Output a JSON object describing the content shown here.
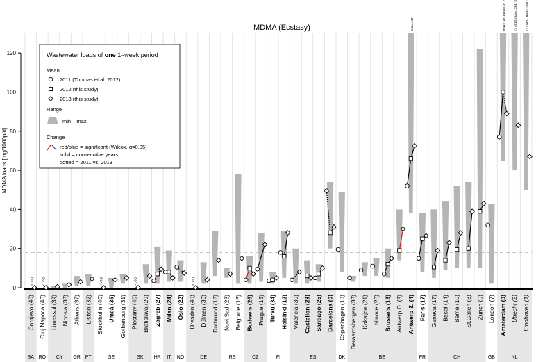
{
  "chart_data": {
    "type": "line",
    "title": "MDMA (Ecstasy)",
    "ylabel": "MDMA loads [mg/1000p/d]",
    "ylim": [
      0,
      130
    ],
    "yticks": [
      0,
      20,
      40,
      60,
      80,
      100,
      120
    ],
    "reference_line": 18,
    "grid": true,
    "legend": {
      "title_prefix": "Wastewater loads of ",
      "title_bold": "one",
      "title_suffix": " 1–week period",
      "mean_heading": "Mean",
      "mean_items": [
        "2011 (Thomas et al. 2012)",
        "2012 (this study)",
        "2013 (this study)"
      ],
      "range_heading": "Range",
      "range_item": "min – max",
      "change_heading": "Change",
      "change_items": [
        "red/blue = significant (Wilcox, α=0.05)",
        "solid = consecutive years",
        "dotted = 2011 vs. 2013"
      ]
    },
    "loq_label": "<LOQ",
    "cities": [
      {
        "label": "Sarajevo (40)",
        "country": "BA",
        "v": [
          null,
          null,
          0
        ],
        "r": [
          0,
          0
        ],
        "loq": true
      },
      {
        "label": "Cluj Napoca (40)",
        "country": "RO",
        "v": [
          null,
          null,
          0
        ],
        "r": [
          0,
          0
        ],
        "loq": true
      },
      {
        "label": "Limassol (39)",
        "country": "CY",
        "v": [
          null,
          null,
          0.5
        ],
        "r": [
          0,
          1
        ]
      },
      {
        "label": "Nicosia (38)",
        "country": "CY",
        "v": [
          null,
          null,
          1.5
        ],
        "r": [
          0,
          2
        ]
      },
      {
        "label": "Athens (37)",
        "country": "GR",
        "v": [
          null,
          null,
          3
        ],
        "r": [
          1,
          6
        ]
      },
      {
        "label": "Lisbon (32)",
        "country": "PT",
        "v": [
          null,
          null,
          4.5
        ],
        "r": [
          1,
          7
        ]
      },
      {
        "label": "Stockholm (40)",
        "country": "SE",
        "v": [
          null,
          null,
          0
        ],
        "r": [
          0,
          0
        ],
        "loq": true
      },
      {
        "label": "Umeå (35)",
        "country": "SE",
        "bold": true,
        "v": [
          null,
          null,
          4
        ],
        "r": [
          0,
          5
        ]
      },
      {
        "label": "Gothenburg (31)",
        "country": "SE",
        "v": [
          null,
          null,
          5
        ],
        "r": [
          2,
          7
        ]
      },
      {
        "label": "Piestany (40)",
        "country": "SK",
        "v": [
          null,
          null,
          0
        ],
        "r": [
          0,
          0
        ],
        "loq": true
      },
      {
        "label": "Bratislava (29)",
        "country": "SK",
        "v": [
          null,
          null,
          6
        ],
        "r": [
          2,
          12
        ]
      },
      {
        "label": "Zagreb (27)",
        "country": "HR",
        "bold": true,
        "v": [
          3.5,
          7,
          9.5
        ],
        "r": [
          2,
          21
        ],
        "seg": [
          "red",
          "solid"
        ]
      },
      {
        "label": "Milan (24)",
        "country": "IT",
        "bold": true,
        "v": [
          8,
          8,
          5
        ],
        "r": [
          3,
          19
        ],
        "seg": [
          "solid",
          "solid"
        ]
      },
      {
        "label": "Oslo (22)",
        "country": "NO",
        "bold": true,
        "v": [
          10.5,
          null,
          7.5
        ],
        "r": [
          3,
          14
        ],
        "seg": [
          null,
          "dotted"
        ]
      },
      {
        "label": "Dresden (40)",
        "country": "DE",
        "v": [
          null,
          null,
          0
        ],
        "r": [
          0,
          0
        ],
        "loq": true
      },
      {
        "label": "Dülmen (36)",
        "country": "DE",
        "v": [
          null,
          null,
          4
        ],
        "r": [
          2,
          13
        ]
      },
      {
        "label": "Dortmund (18)",
        "country": "DE",
        "v": [
          null,
          null,
          14
        ],
        "r": [
          6,
          29
        ]
      },
      {
        "label": "Novi Sad (23)",
        "country": "RS",
        "v": [
          null,
          null,
          7
        ],
        "r": [
          5,
          10
        ]
      },
      {
        "label": "Belgrade (16)",
        "country": "RS",
        "v": [
          null,
          null,
          15
        ],
        "r": [
          2,
          58
        ]
      },
      {
        "label": "Budweis (26)",
        "country": "CZ",
        "bold": true,
        "v": [
          4,
          10,
          7
        ],
        "r": [
          2,
          16
        ],
        "seg": [
          "red",
          "solid"
        ]
      },
      {
        "label": "Prague (15)",
        "country": "CZ",
        "v": [
          9.5,
          null,
          22
        ],
        "r": [
          3,
          28
        ],
        "seg": [
          null,
          "solid"
        ]
      },
      {
        "label": "Turku (34)",
        "country": "FI",
        "bold": true,
        "v": [
          3.5,
          4,
          5
        ],
        "r": [
          2,
          8
        ],
        "seg": [
          "solid",
          "solid"
        ]
      },
      {
        "label": "Helsinki (12)",
        "country": "FI",
        "bold": true,
        "v": [
          18,
          16,
          28
        ],
        "r": [
          5,
          29
        ],
        "seg": [
          "solid",
          "solid"
        ]
      },
      {
        "label": "Valencia (30)",
        "country": "ES",
        "v": [
          4,
          null,
          8
        ],
        "r": [
          2,
          20
        ],
        "seg": [
          null,
          "dotted"
        ]
      },
      {
        "label": "Castellon (28)",
        "country": "ES",
        "bold": true,
        "v": [
          null,
          6,
          5
        ],
        "r": [
          2,
          14
        ],
        "seg": [
          null,
          "solid"
        ]
      },
      {
        "label": "Santiago (25)",
        "country": "ES",
        "bold": true,
        "v": [
          5,
          7,
          10
        ],
        "r": [
          3,
          12
        ],
        "seg": [
          "solid",
          "solid"
        ]
      },
      {
        "label": "Barcelona (6)",
        "country": "ES",
        "bold": true,
        "v": [
          49.5,
          28,
          31
        ],
        "r": [
          20,
          54
        ],
        "seg": [
          "dotted",
          "solid"
        ]
      },
      {
        "label": "Copenhagen (13)",
        "country": "DK",
        "v": [
          19.5,
          null,
          null
        ],
        "r": [
          8,
          49
        ]
      },
      {
        "label": "Geraardsbergen (33)",
        "country": "BE",
        "v": [
          5,
          null,
          null
        ],
        "r": [
          3,
          6
        ]
      },
      {
        "label": "Koksijde (21)",
        "country": "BE",
        "v": [
          9,
          null,
          null
        ],
        "r": [
          6,
          13
        ]
      },
      {
        "label": "Ninove (20)",
        "country": "BE",
        "v": [
          11,
          null,
          null
        ],
        "r": [
          6,
          15
        ]
      },
      {
        "label": "Brussels (19)",
        "country": "BE",
        "bold": true,
        "v": [
          7,
          12,
          15
        ],
        "r": [
          5,
          20
        ],
        "seg": [
          "solid",
          "solid"
        ]
      },
      {
        "label": "Antwerp D. (9)",
        "country": "BE",
        "v": [
          null,
          19,
          30
        ],
        "r": [
          14,
          40
        ],
        "seg": [
          null,
          "red"
        ]
      },
      {
        "label": "Antwerp Z. (4)",
        "country": "BE",
        "bold": true,
        "v": [
          52,
          66,
          72.5
        ],
        "r": [
          38,
          130
        ],
        "seg": [
          "solid",
          "solid"
        ],
        "outlier": "max=147"
      },
      {
        "label": "Paris (17)",
        "country": "FR",
        "bold": true,
        "v": [
          15,
          25,
          26.5
        ],
        "r": [
          8,
          38
        ],
        "seg": [
          "solid",
          "solid"
        ]
      },
      {
        "label": "Geneva (17)",
        "country": "CH",
        "v": [
          null,
          10.5,
          19
        ],
        "r": [
          5,
          40
        ],
        "seg": [
          null,
          "solid"
        ]
      },
      {
        "label": "Basel (14)",
        "country": "CH",
        "v": [
          null,
          14,
          23
        ],
        "r": [
          9,
          44
        ],
        "seg": [
          null,
          "solid"
        ]
      },
      {
        "label": "Berne (10)",
        "country": "CH",
        "v": [
          null,
          19.5,
          28
        ],
        "r": [
          10,
          52
        ],
        "seg": [
          null,
          "solid"
        ]
      },
      {
        "label": "St.Gallen (8)",
        "country": "CH",
        "v": [
          null,
          20,
          39
        ],
        "r": [
          10,
          54
        ],
        "seg": [
          null,
          "solid"
        ]
      },
      {
        "label": "Zurich (5)",
        "country": "CH",
        "v": [
          null,
          39,
          43
        ],
        "r": [
          10,
          122
        ],
        "seg": [
          null,
          "solid"
        ]
      },
      {
        "label": "London (7)",
        "country": "GB",
        "v": [
          32,
          null,
          null
        ],
        "r": [
          2,
          43
        ]
      },
      {
        "label": "Amsterdam (3)",
        "country": "NL",
        "bold": true,
        "v": [
          77,
          100,
          89
        ],
        "r": [
          65,
          130
        ],
        "seg": [
          "solid",
          "dotted"
        ],
        "outlier": "max=143, max=156, max=159"
      },
      {
        "label": "Utrecht (2)",
        "country": "NL",
        "italic": true,
        "v": [
          null,
          null,
          83
        ],
        "r": [
          60,
          130
        ],
        "seg": [
          null,
          "blue"
        ],
        "outlier": "◇ =613, max=1284, □ =162, max=371"
      },
      {
        "label": "Eindhoven (1)",
        "country": "NL",
        "italic": true,
        "v": [
          null,
          null,
          67
        ],
        "r": [
          50,
          130
        ],
        "seg": [
          null,
          "red"
        ],
        "outlier": "◇ =1437, max=7990, □ =484, max=765"
      }
    ]
  }
}
